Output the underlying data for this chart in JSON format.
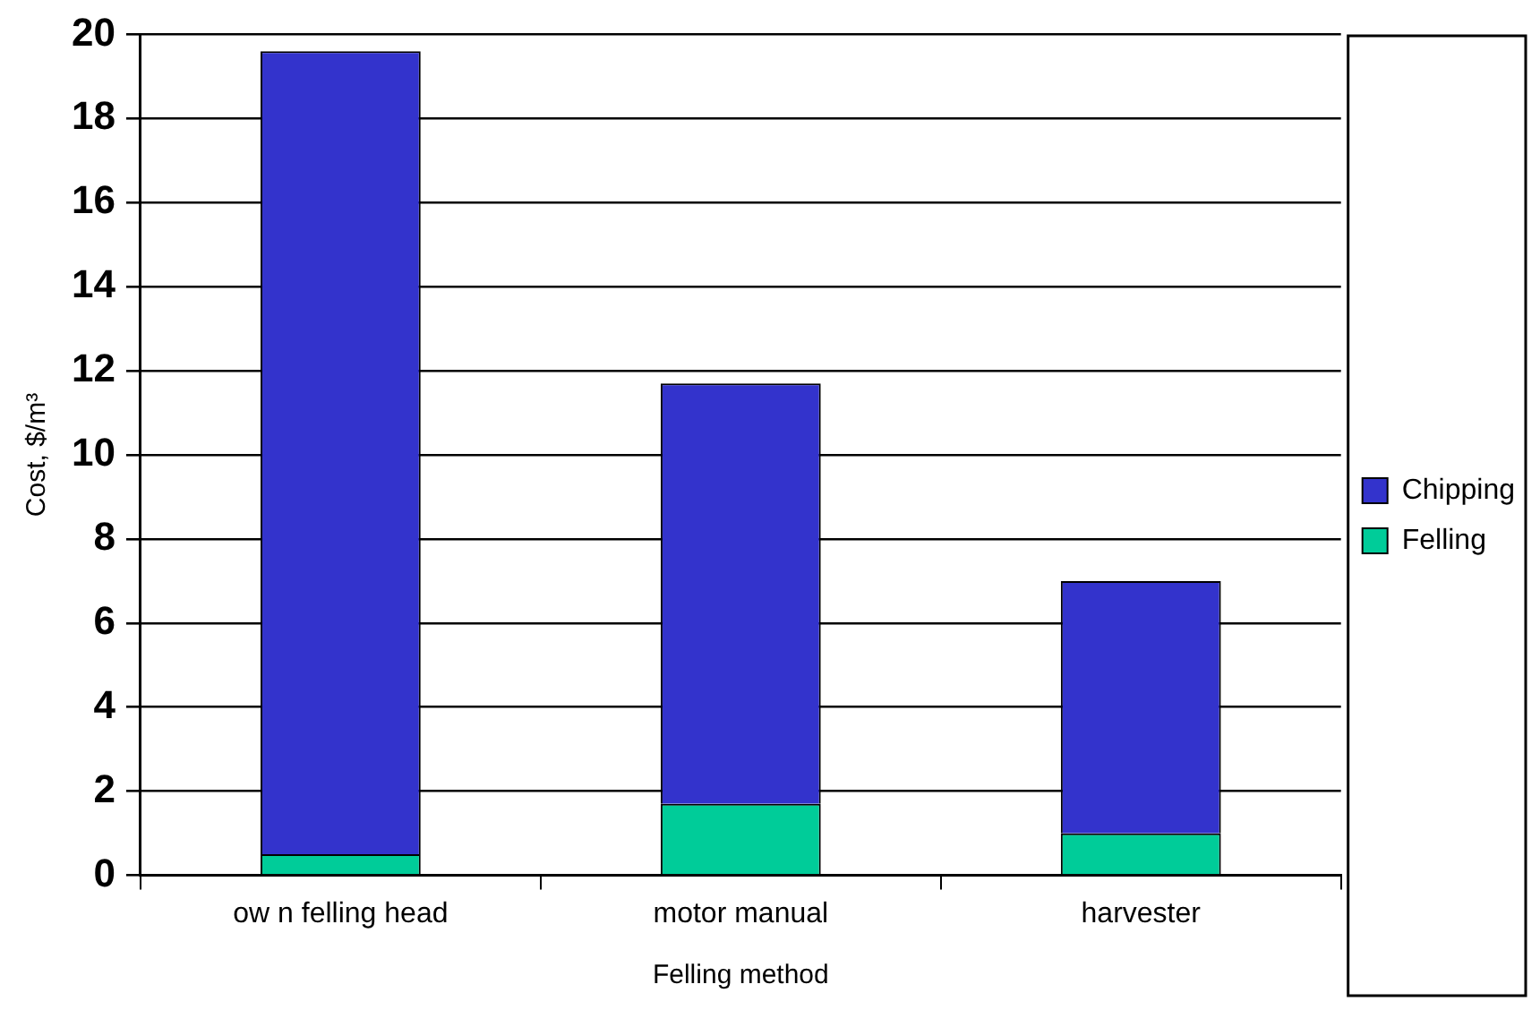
{
  "chart_data": {
    "type": "bar",
    "stacked": true,
    "xlabel": "Felling method",
    "ylabel": "Cost, $/m³",
    "categories": [
      "ow n felling head",
      "motor manual",
      "harvester"
    ],
    "series": [
      {
        "name": "Felling",
        "color": "#00cc99",
        "values": [
          0.5,
          1.7,
          1.0
        ]
      },
      {
        "name": "Chipping",
        "color": "#3333cc",
        "values": [
          19.1,
          10.0,
          6.0
        ]
      }
    ],
    "ylim": [
      0,
      20
    ],
    "yticks": [
      0,
      2,
      4,
      6,
      8,
      10,
      12,
      14,
      16,
      18,
      20
    ],
    "grid": "y",
    "legend": "right"
  }
}
